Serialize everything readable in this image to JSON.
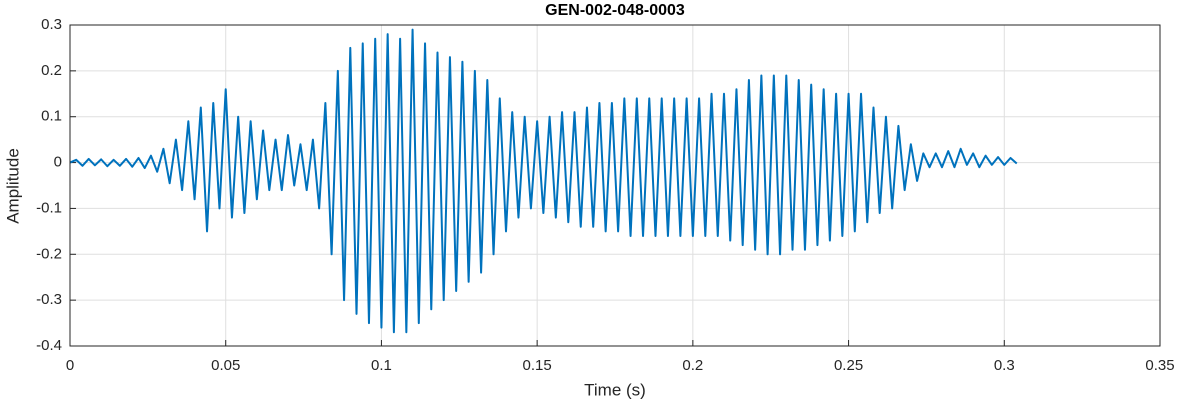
{
  "chart_data": {
    "type": "line",
    "title": "GEN-002-048-0003",
    "xlabel": "Time (s)",
    "ylabel": "Amplitude",
    "color": "#0072bd",
    "grid": true,
    "xlim": [
      0,
      0.35
    ],
    "xticks": [
      0,
      0.05,
      0.1,
      0.15,
      0.2,
      0.25,
      0.3,
      0.35
    ],
    "ylim": [
      -0.4,
      0.3
    ],
    "yticks": [
      -0.4,
      -0.3,
      -0.2,
      -0.1,
      0,
      0.1,
      0.2,
      0.3
    ],
    "x": [
      0,
      0.002,
      0.004,
      0.006,
      0.008,
      0.01,
      0.012,
      0.014,
      0.016,
      0.018,
      0.02,
      0.022,
      0.024,
      0.026,
      0.028,
      0.03,
      0.032,
      0.034,
      0.036,
      0.038,
      0.04,
      0.042,
      0.044,
      0.046,
      0.048,
      0.05,
      0.052,
      0.054,
      0.056,
      0.058,
      0.06,
      0.062,
      0.064,
      0.066,
      0.068,
      0.07,
      0.072,
      0.074,
      0.076,
      0.078,
      0.08,
      0.082,
      0.084,
      0.086,
      0.088,
      0.09,
      0.092,
      0.094,
      0.096,
      0.098,
      0.1,
      0.102,
      0.104,
      0.106,
      0.108,
      0.11,
      0.112,
      0.114,
      0.116,
      0.118,
      0.12,
      0.122,
      0.124,
      0.126,
      0.128,
      0.13,
      0.132,
      0.134,
      0.136,
      0.138,
      0.14,
      0.142,
      0.144,
      0.146,
      0.148,
      0.15,
      0.152,
      0.154,
      0.156,
      0.158,
      0.16,
      0.162,
      0.164,
      0.166,
      0.168,
      0.17,
      0.172,
      0.174,
      0.176,
      0.178,
      0.18,
      0.182,
      0.184,
      0.186,
      0.188,
      0.19,
      0.192,
      0.194,
      0.196,
      0.198,
      0.2,
      0.202,
      0.204,
      0.206,
      0.208,
      0.21,
      0.212,
      0.214,
      0.216,
      0.218,
      0.22,
      0.222,
      0.224,
      0.226,
      0.228,
      0.23,
      0.232,
      0.234,
      0.236,
      0.238,
      0.24,
      0.242,
      0.244,
      0.246,
      0.248,
      0.25,
      0.252,
      0.254,
      0.256,
      0.258,
      0.26,
      0.262,
      0.264,
      0.266,
      0.268,
      0.27,
      0.272,
      0.274,
      0.276,
      0.278,
      0.28,
      0.282,
      0.284,
      0.286,
      0.288,
      0.29,
      0.292,
      0.294,
      0.296,
      0.298,
      0.3,
      0.302,
      0.304
    ],
    "values": [
      0,
      0.006,
      -0.007,
      0.008,
      -0.006,
      0.007,
      -0.008,
      0.006,
      -0.007,
      0.008,
      -0.009,
      0.01,
      -0.012,
      0.015,
      -0.02,
      0.03,
      -0.045,
      0.05,
      -0.06,
      0.09,
      -0.08,
      0.12,
      -0.15,
      0.13,
      -0.1,
      0.16,
      -0.12,
      0.1,
      -0.11,
      0.09,
      -0.08,
      0.07,
      -0.06,
      0.05,
      -0.06,
      0.06,
      -0.05,
      0.04,
      -0.06,
      0.05,
      -0.1,
      0.13,
      -0.2,
      0.2,
      -0.3,
      0.25,
      -0.33,
      0.26,
      -0.35,
      0.27,
      -0.36,
      0.28,
      -0.37,
      0.27,
      -0.37,
      0.29,
      -0.35,
      0.26,
      -0.32,
      0.24,
      -0.3,
      0.23,
      -0.28,
      0.22,
      -0.26,
      0.2,
      -0.24,
      0.18,
      -0.2,
      0.14,
      -0.15,
      0.11,
      -0.12,
      0.1,
      -0.1,
      0.09,
      -0.11,
      0.1,
      -0.12,
      0.11,
      -0.13,
      0.11,
      -0.14,
      0.12,
      -0.14,
      0.13,
      -0.15,
      0.13,
      -0.15,
      0.14,
      -0.16,
      0.14,
      -0.16,
      0.14,
      -0.16,
      0.14,
      -0.16,
      0.14,
      -0.16,
      0.14,
      -0.16,
      0.14,
      -0.16,
      0.15,
      -0.16,
      0.15,
      -0.17,
      0.16,
      -0.18,
      0.18,
      -0.19,
      0.19,
      -0.2,
      0.19,
      -0.2,
      0.19,
      -0.19,
      0.18,
      -0.19,
      0.17,
      -0.18,
      0.16,
      -0.17,
      0.15,
      -0.16,
      0.15,
      -0.15,
      0.15,
      -0.13,
      0.12,
      -0.11,
      0.1,
      -0.1,
      0.08,
      -0.06,
      0.04,
      -0.04,
      0.02,
      -0.01,
      0.02,
      -0.01,
      0.025,
      -0.01,
      0.03,
      -0.005,
      0.02,
      -0.01,
      0.015,
      -0.005,
      0.012,
      -0.005,
      0.01,
      -0.002
    ]
  }
}
